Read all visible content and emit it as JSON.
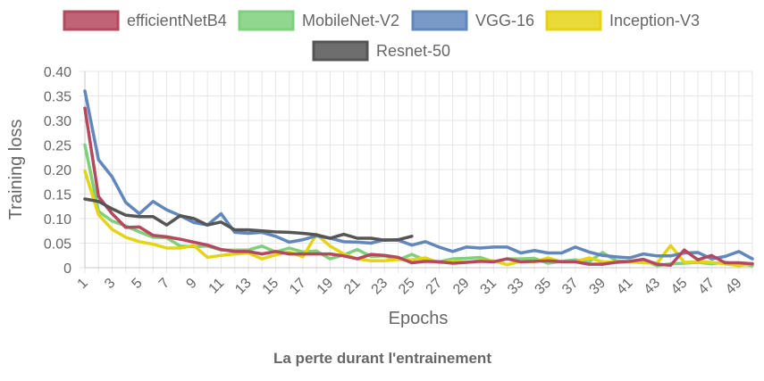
{
  "chart_data": {
    "type": "line",
    "title": "La perte durant l'entrainement",
    "xlabel": "Epochs",
    "ylabel": "Training loss",
    "ylim": [
      0,
      0.4
    ],
    "yticks": [
      "0",
      "0.05",
      "0.10",
      "0.15",
      "0.20",
      "0.25",
      "0.30",
      "0.35",
      "0.40"
    ],
    "xticks": [
      "1",
      "3",
      "5",
      "7",
      "9",
      "11",
      "13",
      "15",
      "17",
      "19",
      "21",
      "23",
      "25",
      "27",
      "29",
      "31",
      "33",
      "35",
      "37",
      "39",
      "41",
      "43",
      "45",
      "47",
      "49"
    ],
    "grid": true,
    "legend_position": "top",
    "series": [
      {
        "name": "efficientNetB4",
        "color": "#b5485f",
        "values": [
          0.325,
          0.145,
          0.11,
          0.082,
          0.083,
          0.066,
          0.063,
          0.058,
          0.052,
          0.046,
          0.037,
          0.033,
          0.033,
          0.028,
          0.033,
          0.028,
          0.028,
          0.028,
          0.028,
          0.024,
          0.018,
          0.027,
          0.025,
          0.021,
          0.01,
          0.013,
          0.012,
          0.009,
          0.011,
          0.013,
          0.012,
          0.018,
          0.012,
          0.013,
          0.014,
          0.012,
          0.012,
          0.007,
          0.007,
          0.011,
          0.013,
          0.017,
          0.007,
          0.005,
          0.036,
          0.016,
          0.025,
          0.01,
          0.01,
          0.008
        ]
      },
      {
        "name": "MobileNet-V2",
        "color": "#7ed07b",
        "values": [
          0.25,
          0.115,
          0.095,
          0.085,
          0.073,
          0.062,
          0.061,
          0.044,
          0.043,
          0.044,
          0.036,
          0.036,
          0.036,
          0.044,
          0.032,
          0.04,
          0.032,
          0.034,
          0.018,
          0.026,
          0.037,
          0.023,
          0.024,
          0.016,
          0.027,
          0.015,
          0.012,
          0.018,
          0.019,
          0.021,
          0.012,
          0.018,
          0.018,
          0.019,
          0.009,
          0.013,
          0.016,
          0.012,
          0.031,
          0.014,
          0.012,
          0.015,
          0.004,
          0.008,
          0.009,
          0.011,
          0.008,
          0.011,
          0.008,
          0.004
        ]
      },
      {
        "name": "VGG-16",
        "color": "#6187bd",
        "values": [
          0.36,
          0.22,
          0.185,
          0.133,
          0.11,
          0.135,
          0.118,
          0.106,
          0.092,
          0.087,
          0.11,
          0.072,
          0.07,
          0.072,
          0.064,
          0.052,
          0.057,
          0.065,
          0.06,
          0.053,
          0.052,
          0.05,
          0.057,
          0.056,
          0.046,
          0.053,
          0.042,
          0.033,
          0.042,
          0.04,
          0.042,
          0.042,
          0.03,
          0.035,
          0.03,
          0.03,
          0.042,
          0.032,
          0.025,
          0.022,
          0.02,
          0.028,
          0.024,
          0.024,
          0.03,
          0.031,
          0.018,
          0.023,
          0.033,
          0.018
        ]
      },
      {
        "name": "Inception-V3",
        "color": "#e5d416",
        "values": [
          0.197,
          0.108,
          0.078,
          0.062,
          0.053,
          0.048,
          0.04,
          0.04,
          0.045,
          0.021,
          0.025,
          0.028,
          0.03,
          0.018,
          0.026,
          0.032,
          0.022,
          0.068,
          0.044,
          0.028,
          0.018,
          0.014,
          0.014,
          0.017,
          0.016,
          0.02,
          0.01,
          0.013,
          0.011,
          0.014,
          0.014,
          0.006,
          0.013,
          0.012,
          0.02,
          0.012,
          0.012,
          0.02,
          0.012,
          0.011,
          0.012,
          0.01,
          0.009,
          0.045,
          0.011,
          0.012,
          0.011,
          0.008,
          0.004,
          0.008
        ]
      },
      {
        "name": "Resnet-50",
        "color": "#555555",
        "values": [
          0.14,
          0.135,
          0.12,
          0.107,
          0.104,
          0.104,
          0.087,
          0.106,
          0.1,
          0.087,
          0.093,
          0.077,
          0.077,
          0.075,
          0.073,
          0.072,
          0.07,
          0.067,
          0.06,
          0.068,
          0.06,
          0.06,
          0.056,
          0.057,
          0.064
        ]
      }
    ]
  }
}
